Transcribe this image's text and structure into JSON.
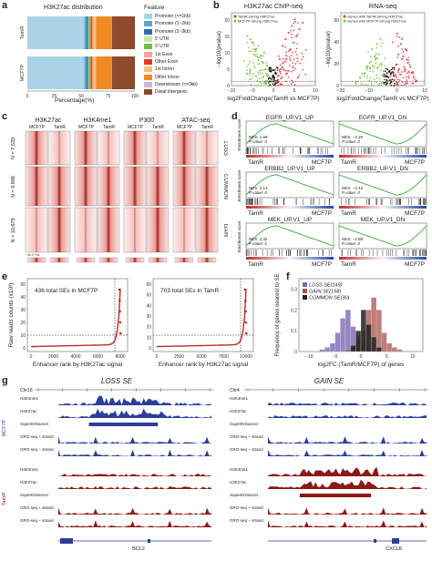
{
  "panels": {
    "a": {
      "label": "a",
      "title": "H3K27ac distribution",
      "xlabel": "Percentage(%)",
      "legend_title": "Feature",
      "features": [
        {
          "name": "Promoter (<=1kb)",
          "color": "#aad3e8"
        },
        {
          "name": "Promoter (1~2kb)",
          "color": "#5aa7d3"
        },
        {
          "name": "Promoter (2~3kb)",
          "color": "#2b6fa8"
        },
        {
          "name": "5' UTR",
          "color": "#c9e7a3"
        },
        {
          "name": "3' UTR",
          "color": "#6fbf4c"
        },
        {
          "name": "1st Exon",
          "color": "#f6a09a"
        },
        {
          "name": "Other Exon",
          "color": "#e2382c"
        },
        {
          "name": "1st Intron",
          "color": "#f8c07a"
        },
        {
          "name": "Other Intron",
          "color": "#f08a24"
        },
        {
          "name": "Downstream (<=3kb)",
          "color": "#d1b7dc"
        },
        {
          "name": "Distal Intergenic",
          "color": "#8d4a2c"
        }
      ],
      "chart_data": {
        "type": "bar",
        "orientation": "horizontal-stacked",
        "categories": [
          "TamR",
          "MCF7P"
        ],
        "series": [
          {
            "name": "Promoter (<=1kb)",
            "values": [
              53,
              53
            ]
          },
          {
            "name": "Promoter (1~2kb)",
            "values": [
              2,
              2
            ]
          },
          {
            "name": "Promoter (2~3kb)",
            "values": [
              1.5,
              1.5
            ]
          },
          {
            "name": "5' UTR",
            "values": [
              0.5,
              0.5
            ]
          },
          {
            "name": "3' UTR",
            "values": [
              1.5,
              1.5
            ]
          },
          {
            "name": "1st Exon",
            "values": [
              0.5,
              0.5
            ]
          },
          {
            "name": "Other Exon",
            "values": [
              1.5,
              1.5
            ]
          },
          {
            "name": "1st Intron",
            "values": [
              3.5,
              3.5
            ]
          },
          {
            "name": "Other Intron",
            "values": [
              14,
              14
            ]
          },
          {
            "name": "Downstream (<=3kb)",
            "values": [
              0.5,
              0.5
            ]
          },
          {
            "name": "Distal Intergenic",
            "values": [
              21.5,
              21.5
            ]
          }
        ],
        "xlim": [
          0,
          100
        ]
      }
    },
    "b": {
      "label": "b",
      "plots": [
        {
          "title": "H3K27ac ChIP-seq",
          "xlabel": "log2FoldChange(TamR vs MCF7P)",
          "ylabel": "−log10(pvalue)",
          "legend": [
            {
              "text": "TamR-strong H3K27ac",
              "color": "#e0393b"
            },
            {
              "text": "MCF7P-strong H3K27ac",
              "color": "#7fc241"
            }
          ],
          "xticks": [
            "−10",
            "−5",
            "0",
            "5",
            "10"
          ],
          "yticks": [
            "0",
            "5",
            "10",
            "15",
            "20"
          ],
          "chart_data": {
            "type": "scatter",
            "xlim": [
              -10,
              10
            ],
            "ylim": [
              0,
              22
            ],
            "series": [
              {
                "name": "TamR-strong H3K27ac",
                "x": [
                  1.2,
                  1.8,
                  2.5,
                  3.1,
                  4.0,
                  4.8,
                  5.5,
                  6.2,
                  7.0,
                  2.2,
                  3.6,
                  5.1,
                  1.5,
                  2.9,
                  4.4
                ],
                "y": [
                  3,
                  5,
                  7,
                  9,
                  11,
                  13,
                  15,
                  17,
                  19,
                  12,
                  16,
                  20,
                  8,
                  14,
                  18
                ]
              },
              {
                "name": "MCF7P-strong H3K27ac",
                "x": [
                  -1.2,
                  -1.8,
                  -2.5,
                  -3.1,
                  -4.0,
                  -4.8,
                  -5.5,
                  -6.2,
                  -2.2,
                  -3.6,
                  -5.1,
                  -1.5,
                  -2.9,
                  -4.4
                ],
                "y": [
                  3,
                  5,
                  7,
                  9,
                  11,
                  13,
                  14,
                  15,
                  10,
                  12,
                  13,
                  6,
                  9,
                  11
                ]
              }
            ]
          }
        },
        {
          "title": "RNA-seq",
          "xlabel": "log2FoldChange(TamR vs MCF7P)",
          "ylabel": "−log10(pvalue)",
          "legend": [
            {
              "text": "Genes with TamR-strong H3K27ac",
              "color": "#e0393b"
            },
            {
              "text": "Genes with MCF7P-strong H3K27ac",
              "color": "#7fc241"
            }
          ],
          "xticks": [
            "−20",
            "−10",
            "0",
            "10"
          ],
          "yticks": [
            "0",
            "20",
            "40",
            "60"
          ],
          "chart_data": {
            "type": "scatter",
            "xlim": [
              -20,
              15
            ],
            "ylim": [
              0,
              70
            ],
            "series": [
              {
                "name": "Genes with TamR-strong H3K27ac",
                "x": [
                  2,
                  3,
                  4,
                  5,
                  6,
                  7,
                  8,
                  9,
                  10,
                  3.5,
                  5.5,
                  7.5
                ],
                "y": [
                  10,
                  20,
                  30,
                  40,
                  28,
                  35,
                  22,
                  18,
                  12,
                  50,
                  45,
                  25
                ]
              },
              {
                "name": "Genes with MCF7P-strong H3K27ac",
                "x": [
                  -2,
                  -3,
                  -4,
                  -5,
                  -6,
                  -7,
                  -8,
                  -9,
                  -10,
                  -12,
                  -3.5,
                  -5.5
                ],
                "y": [
                  10,
                  20,
                  30,
                  40,
                  28,
                  35,
                  22,
                  18,
                  12,
                  8,
                  45,
                  25
                ]
              }
            ]
          }
        }
      ]
    },
    "c": {
      "label": "c",
      "marks": [
        "H3K27ac",
        "H3K4me1",
        "P300",
        "ATAC‑seq"
      ],
      "cols": [
        "MCF7P",
        "TamR"
      ],
      "rows": [
        {
          "n": "N = 7,533",
          "name": "LOSS"
        },
        {
          "n": "N = 9,896",
          "name": "COMMON"
        },
        {
          "n": "N = 10,679",
          "name": "GAIN"
        }
      ],
      "axis": "−4k   0   +4k"
    },
    "d": {
      "label": "d",
      "ylabel": "Enrichment score",
      "plots": [
        {
          "title": "EGFR_UP.V1_UP",
          "nes": "NES: 1.69",
          "p": "P value: 0",
          "up": true
        },
        {
          "title": "EGFR_UP.V1_DN",
          "nes": "NES: −2.20",
          "p": "P value: 0",
          "up": false
        },
        {
          "title": "ERBB2_UP.V1_UP",
          "nes": "NES: 2.13",
          "p": "P value: 0",
          "up": true
        },
        {
          "title": "ERBB2_UP.V1_DN",
          "nes": "NES: −2.43",
          "p": "P value: 0",
          "up": false
        },
        {
          "title": "MEK_UP.V1_UP",
          "nes": "NES: 2.32",
          "p": "P value: 0",
          "up": true
        },
        {
          "title": "MEK_UP.V1_DN",
          "nes": "NES: −2.86",
          "p": "P value: 0",
          "up": false
        }
      ],
      "left_label": "TamR",
      "right_label": "MCF7P"
    },
    "e": {
      "label": "e",
      "ylabel": "Raw reads counts (x10³)",
      "xlabel": "Enhancer rank by H3K27ac signal",
      "plots": [
        {
          "text": "436 total SEs in MCF7P",
          "xticks": [
            "0",
            "2000",
            "4000",
            "6000",
            "8000"
          ],
          "yticks": [
            "0",
            "10",
            "20",
            "30",
            "40",
            "50"
          ]
        },
        {
          "text": "703 total SEs in TamR",
          "xticks": [
            "0",
            "2500",
            "5000",
            "7500",
            "10000"
          ],
          "yticks": [
            "0",
            "10",
            "20",
            "30",
            "40",
            "50",
            "60"
          ]
        }
      ]
    },
    "f": {
      "label": "f",
      "ylabel": "Frequency of genes nearest to SE",
      "xlabel": "log2FC (TamR/MCF7P) of genes",
      "legend": [
        {
          "text": "LOSS SE(149)",
          "color": "#7b6ab3"
        },
        {
          "text": "GAIN SE(158)",
          "color": "#a8524a"
        },
        {
          "text": "COMMON SE(30)",
          "color": "#222222"
        }
      ],
      "xticks": [
        "−10",
        "−5",
        "0",
        "5",
        "10"
      ],
      "yticks": [
        "0",
        "0.1",
        "0.2",
        "0.3"
      ],
      "chart_data": {
        "type": "histogram",
        "xlim": [
          -12,
          12
        ],
        "ylim": [
          0,
          0.35
        ],
        "bins": [
          -8,
          -7,
          -6,
          -5,
          -4,
          -3,
          -2,
          -1,
          0,
          1,
          2,
          3,
          4,
          5,
          6,
          7
        ],
        "series": [
          {
            "name": "LOSS SE(149)",
            "values": [
              0.01,
              0.02,
              0.04,
              0.09,
              0.16,
              0.2,
              0.12,
              0.08,
              0.05,
              0.02,
              0.01,
              0,
              0,
              0,
              0,
              0
            ]
          },
          {
            "name": "GAIN SE(158)",
            "values": [
              0,
              0,
              0,
              0,
              0,
              0.01,
              0.02,
              0.06,
              0.1,
              0.2,
              0.26,
              0.2,
              0.09,
              0.04,
              0.02,
              0.01
            ]
          },
          {
            "name": "COMMON SE(30)",
            "values": [
              0,
              0,
              0,
              0,
              0,
              0,
              0.03,
              0.1,
              0.2,
              0.13,
              0.07,
              0.02,
              0,
              0,
              0,
              0
            ]
          }
        ]
      }
    },
    "g": {
      "label": "g",
      "left": {
        "title": "LOSS SE",
        "chrom": "Chr18",
        "gene": "BCL2",
        "groupA": "MCF7P",
        "groupB": "TamR",
        "tracks": [
          "H3K4me1",
          "H3K27ac",
          "SuperEnhancer",
          "GRO-seq + strand",
          "GRO-seq − strand"
        ]
      },
      "right": {
        "title": "GAIN SE",
        "chrom": "Chr4",
        "gene": "CXCL8",
        "tracks": [
          "H3K4me1",
          "H3K27ac",
          "SuperEnhancer",
          "GRO-seq + strand",
          "GRO-seq − strand"
        ]
      }
    }
  }
}
